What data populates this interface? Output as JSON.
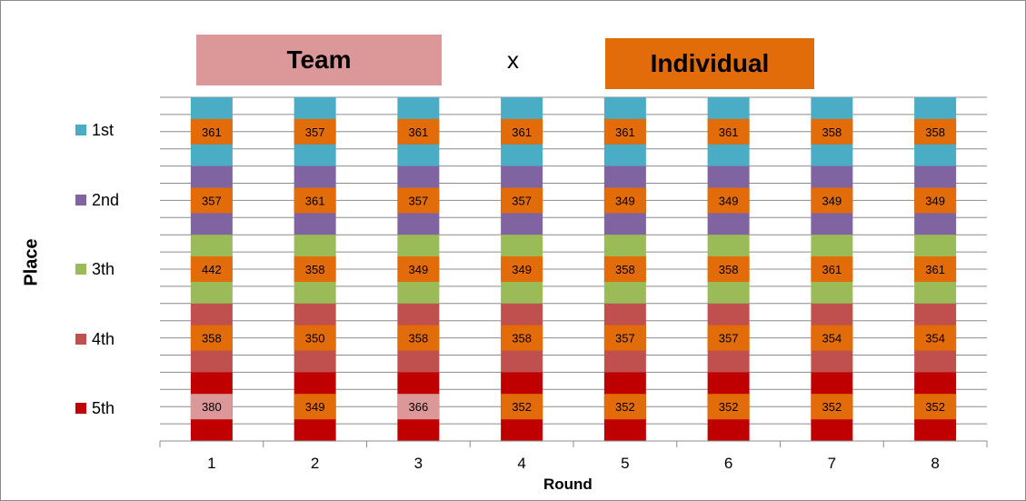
{
  "legend": {
    "team_label": "Team",
    "vs_label": "x",
    "individual_label": "Individual",
    "team_color": "#dc9798",
    "individual_color": "#e36c0a"
  },
  "axes": {
    "ylabel": "Place",
    "xlabel": "Round"
  },
  "places": [
    {
      "label": "1st",
      "color": "#4bacc6"
    },
    {
      "label": "2nd",
      "color": "#8064a2"
    },
    {
      "label": "3th",
      "color": "#9bbb59"
    },
    {
      "label": "4th",
      "color": "#c0504d"
    },
    {
      "label": "5th",
      "color": "#c00000"
    }
  ],
  "chart_data": {
    "type": "table",
    "title": "",
    "xlabel": "Round",
    "ylabel": "Place",
    "rounds": [
      "1",
      "2",
      "3",
      "4",
      "5",
      "6",
      "7",
      "8"
    ],
    "rows": [
      "1st",
      "2nd",
      "3th",
      "4th",
      "5th"
    ],
    "values": [
      [
        361,
        357,
        361,
        361,
        361,
        361,
        358,
        358
      ],
      [
        357,
        361,
        357,
        357,
        349,
        349,
        349,
        349
      ],
      [
        442,
        358,
        349,
        349,
        358,
        358,
        361,
        361
      ],
      [
        358,
        350,
        358,
        358,
        357,
        357,
        354,
        354
      ],
      [
        380,
        349,
        366,
        352,
        352,
        352,
        352,
        352
      ]
    ],
    "cell_type": [
      [
        "individual",
        "individual",
        "individual",
        "individual",
        "individual",
        "individual",
        "individual",
        "individual"
      ],
      [
        "individual",
        "individual",
        "individual",
        "individual",
        "individual",
        "individual",
        "individual",
        "individual"
      ],
      [
        "individual",
        "individual",
        "individual",
        "individual",
        "individual",
        "individual",
        "individual",
        "individual"
      ],
      [
        "individual",
        "individual",
        "individual",
        "individual",
        "individual",
        "individual",
        "individual",
        "individual"
      ],
      [
        "team",
        "individual",
        "team",
        "individual",
        "individual",
        "individual",
        "individual",
        "individual"
      ]
    ],
    "grid": true
  }
}
